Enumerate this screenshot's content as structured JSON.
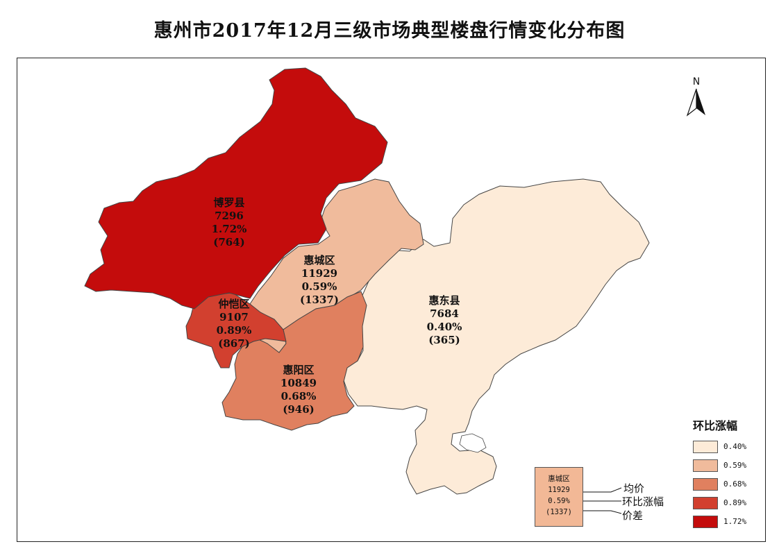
{
  "title": "惠州市2017年12月三级市场典型楼盘行情变化分布图",
  "north_label": "N",
  "regions": [
    {
      "id": "boluo",
      "name": "博罗县",
      "price": "7296",
      "change": "1.72%",
      "diff": "(764)",
      "color": "#c40c0c"
    },
    {
      "id": "huicheng",
      "name": "惠城区",
      "price": "11929",
      "change": "0.59%",
      "diff": "(1337)",
      "color": "#f0bb9c"
    },
    {
      "id": "zhongkai",
      "name": "仲恺区",
      "price": "9107",
      "change": "0.89%",
      "diff": "(867)",
      "color": "#d2402f"
    },
    {
      "id": "huiyang",
      "name": "惠阳区",
      "price": "10849",
      "change": "0.68%",
      "diff": "(946)",
      "color": "#e0805f"
    },
    {
      "id": "huidong",
      "name": "惠东县",
      "price": "7684",
      "change": "0.40%",
      "diff": "(365)",
      "color": "#fdebd8"
    }
  ],
  "legend": {
    "title": "环比涨幅",
    "items": [
      {
        "label": "0.40%",
        "color": "#fdebd8"
      },
      {
        "label": "0.59%",
        "color": "#f0bb9c"
      },
      {
        "label": "0.68%",
        "color": "#e0805f"
      },
      {
        "label": "0.89%",
        "color": "#d2402f"
      },
      {
        "label": "1.72%",
        "color": "#c40c0c"
      }
    ]
  },
  "key": {
    "name": "惠城区",
    "price": "11929",
    "change": "0.59%",
    "diff": "(1337)",
    "notes": {
      "price": "均价",
      "change": "环比涨幅",
      "diff": "价差"
    }
  }
}
